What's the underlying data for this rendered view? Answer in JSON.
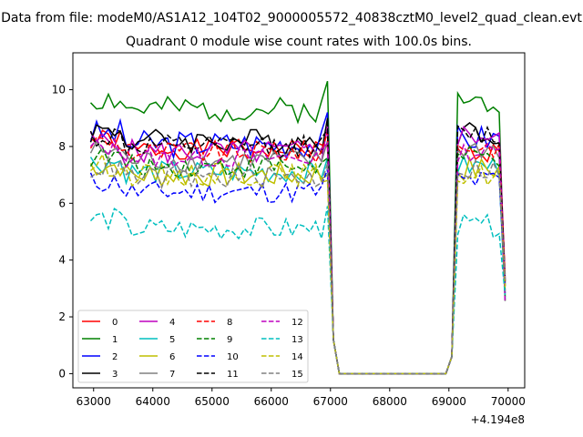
{
  "chart_data": {
    "type": "line",
    "suptitle": "Data from file: modeM0/AS1A12_104T02_9000005572_40838cztM0_level2_quad_clean.evt",
    "title": "Quadrant 0 module wise count rates with 100.0s bins.",
    "xlabel": "",
    "ylabel": "",
    "x_offset_label": "+4.194e8",
    "xlim": [
      62650,
      70280
    ],
    "ylim": [
      -0.5,
      11.3
    ],
    "x_ticks": [
      63000,
      64000,
      65000,
      66000,
      67000,
      68000,
      69000,
      70000
    ],
    "y_ticks": [
      0,
      2,
      4,
      6,
      8,
      10
    ],
    "x": [
      62950,
      63050,
      63150,
      63250,
      63350,
      63450,
      63550,
      63650,
      63750,
      63850,
      63950,
      64050,
      64150,
      64250,
      64350,
      64450,
      64550,
      64650,
      64750,
      64850,
      64950,
      65050,
      65150,
      65250,
      65350,
      65450,
      65550,
      65650,
      65750,
      65850,
      65950,
      66050,
      66150,
      66250,
      66350,
      66450,
      66550,
      66650,
      66750,
      66850,
      66950,
      67050,
      67150,
      67250,
      67350,
      67450,
      67550,
      67650,
      67750,
      67850,
      67950,
      68050,
      68150,
      68250,
      68350,
      68450,
      68550,
      68650,
      68750,
      68850,
      68950,
      69050,
      69150,
      69250,
      69350,
      69450,
      69550,
      69650,
      69750,
      69850,
      69950
    ],
    "series": [
      {
        "name": "0",
        "color": "#ff0000",
        "dash": "solid",
        "base": 7.9,
        "amp": 0.35,
        "seed": 1,
        "post": 7.8,
        "peak": 8.0
      },
      {
        "name": "1",
        "color": "#008000",
        "dash": "solid",
        "base": 9.3,
        "amp": 0.45,
        "seed": 2,
        "post": 9.6,
        "peak": 10.3
      },
      {
        "name": "2",
        "color": "#0000ff",
        "dash": "solid",
        "base": 8.1,
        "amp": 0.5,
        "seed": 3,
        "post": 8.3,
        "peak": 9.2
      },
      {
        "name": "3",
        "color": "#000000",
        "dash": "solid",
        "base": 8.2,
        "amp": 0.45,
        "seed": 4,
        "post": 8.5,
        "peak": 9.0
      },
      {
        "name": "4",
        "color": "#bf00bf",
        "dash": "solid",
        "base": 7.8,
        "amp": 0.45,
        "seed": 5,
        "post": 8.4,
        "peak": 8.7
      },
      {
        "name": "5",
        "color": "#00bfbf",
        "dash": "solid",
        "base": 7.1,
        "amp": 0.4,
        "seed": 6,
        "post": 7.3,
        "peak": 7.6
      },
      {
        "name": "6",
        "color": "#bfbf00",
        "dash": "solid",
        "base": 7.0,
        "amp": 0.45,
        "seed": 7,
        "post": 7.2,
        "peak": 7.0
      },
      {
        "name": "7",
        "color": "#808080",
        "dash": "solid",
        "base": 7.5,
        "amp": 0.4,
        "seed": 8,
        "post": 7.9,
        "peak": 8.2
      },
      {
        "name": "8",
        "color": "#ff0000",
        "dash": "dashed",
        "base": 7.8,
        "amp": 0.4,
        "seed": 9,
        "post": 8.0,
        "peak": 8.5
      },
      {
        "name": "9",
        "color": "#008000",
        "dash": "dashed",
        "base": 7.3,
        "amp": 0.4,
        "seed": 10,
        "post": 7.6,
        "peak": 7.6
      },
      {
        "name": "10",
        "color": "#0000ff",
        "dash": "dashed",
        "base": 6.4,
        "amp": 0.4,
        "seed": 11,
        "post": 6.8,
        "peak": 7.2
      },
      {
        "name": "11",
        "color": "#000000",
        "dash": "dashed",
        "base": 8.0,
        "amp": 0.4,
        "seed": 12,
        "post": 8.4,
        "peak": 8.6
      },
      {
        "name": "12",
        "color": "#bf00bf",
        "dash": "dashed",
        "base": 7.6,
        "amp": 0.35,
        "seed": 13,
        "post": 7.8,
        "peak": 8.1
      },
      {
        "name": "13",
        "color": "#00bfbf",
        "dash": "dashed",
        "base": 5.1,
        "amp": 0.4,
        "seed": 14,
        "post": 5.2,
        "peak": 5.9
      },
      {
        "name": "14",
        "color": "#bfbf00",
        "dash": "dashed",
        "base": 7.0,
        "amp": 0.4,
        "seed": 15,
        "post": 7.0,
        "peak": 6.8
      },
      {
        "name": "15",
        "color": "#808080",
        "dash": "dashed",
        "base": 6.9,
        "amp": 0.4,
        "seed": 16,
        "post": 7.2,
        "peak": 7.4
      }
    ],
    "gap_range": [
      67150,
      68950
    ],
    "legend": {
      "placement": "lower-left",
      "columns": 4
    }
  }
}
